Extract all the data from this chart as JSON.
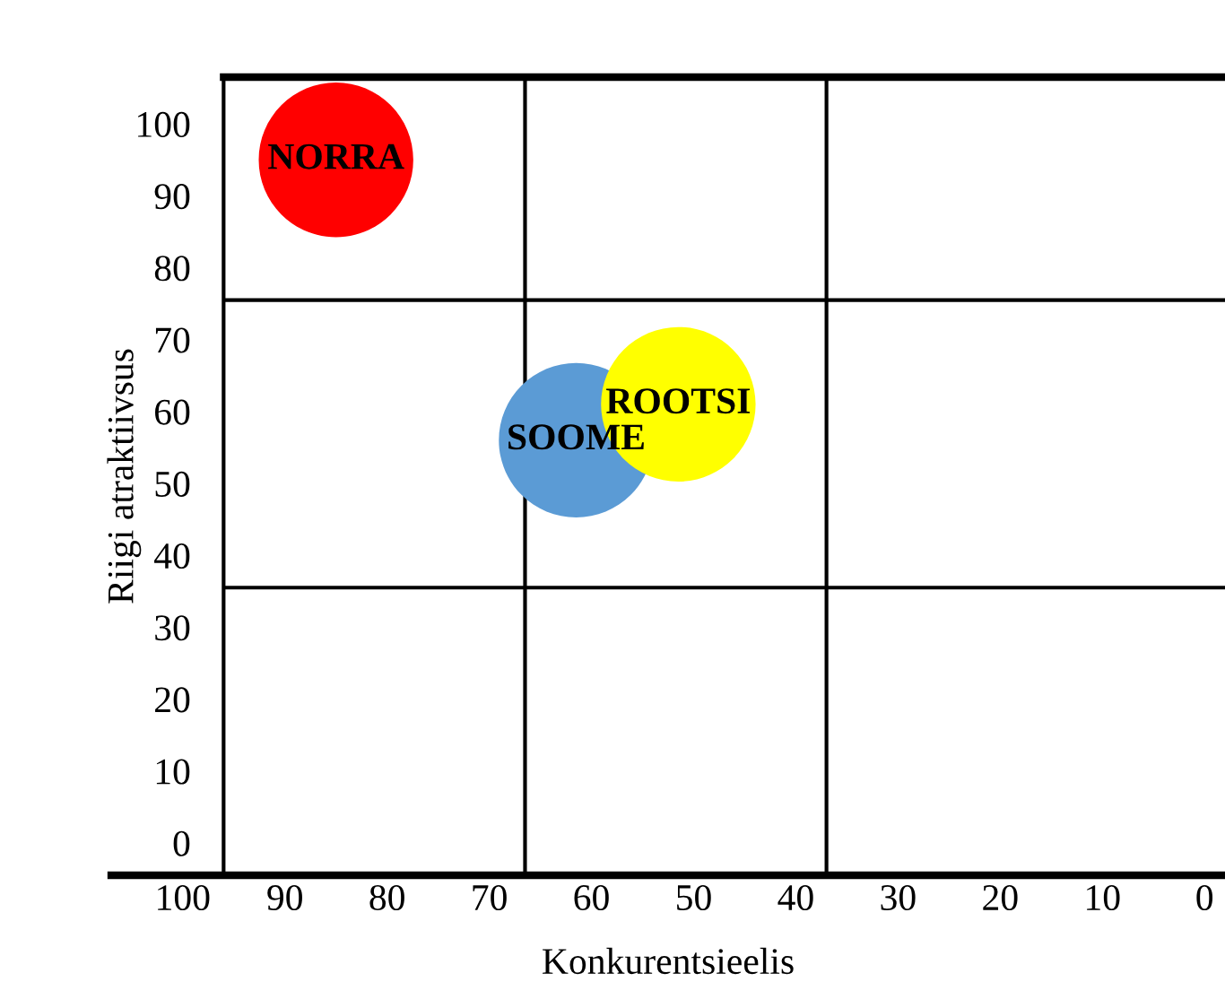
{
  "chart_data": {
    "type": "bubble",
    "xlabel": "Konkurentsieelis",
    "ylabel": "Riigi atraktiivsus",
    "xlim": [
      107,
      -2
    ],
    "ylim": [
      -4.5,
      106.5
    ],
    "xticks": [
      100,
      90,
      80,
      70,
      60,
      50,
      40,
      30,
      20,
      10,
      0
    ],
    "yticks": [
      0,
      10,
      20,
      30,
      40,
      50,
      60,
      70,
      80,
      90,
      100
    ],
    "grid": false,
    "legend": false,
    "series": [
      {
        "name": "NORRA",
        "color": "#ff0000",
        "x": [
          85
        ],
        "values": [
          95
        ],
        "sizes": [
          1
        ]
      },
      {
        "name": "SOOME",
        "color": "#5b9bd5",
        "x": [
          61.5
        ],
        "values": [
          56
        ],
        "sizes": [
          1
        ]
      },
      {
        "name": "ROOTSI",
        "color": "#ffff00",
        "x": [
          51.5
        ],
        "values": [
          61
        ],
        "sizes": [
          1
        ]
      }
    ],
    "ref_lines": [
      {
        "axis": "x",
        "value": 96,
        "color": "#000000"
      },
      {
        "axis": "x",
        "value": 66.5,
        "color": "#000000"
      },
      {
        "axis": "x",
        "value": 37,
        "color": "#000000"
      },
      {
        "axis": "y",
        "value": 75.5,
        "color": "#000000"
      },
      {
        "axis": "y",
        "value": 35.5,
        "color": "#000000"
      }
    ]
  }
}
